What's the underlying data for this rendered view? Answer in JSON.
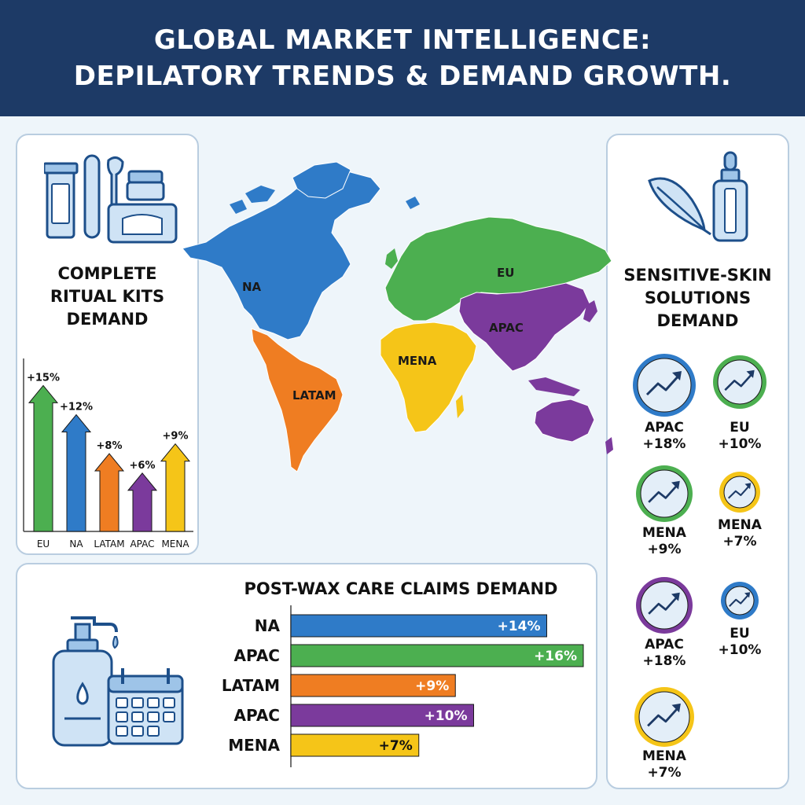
{
  "header": {
    "line1": "GLOBAL MARKET INTELLIGENCE:",
    "line2": "DEPILATORY TRENDS & DEMAND GROWTH."
  },
  "colors": {
    "header_bg": "#1d3a66",
    "blue": "#2f7bc8",
    "green": "#4caf50",
    "orange": "#ef7d22",
    "purple": "#7b3a9c",
    "yellow": "#f5c518"
  },
  "map": {
    "regions": [
      {
        "name": "NA",
        "color": "#2f7bc8"
      },
      {
        "name": "LATAM",
        "color": "#ef7d22"
      },
      {
        "name": "EU",
        "color": "#4caf50"
      },
      {
        "name": "MENA",
        "color": "#f5c518"
      },
      {
        "name": "APAC",
        "color": "#7b3a9c"
      }
    ]
  },
  "chart_data": [
    {
      "type": "bar",
      "title": "COMPLETE RITUAL KITS DEMAND",
      "title_lines": [
        "COMPLETE",
        "RITUAL KITS",
        "DEMAND"
      ],
      "icons": [
        "tube-icon",
        "spatula-icon",
        "jar-icon",
        "wipes-pack-icon"
      ],
      "categories": [
        "EU",
        "NA",
        "LATAM",
        "APAC",
        "MENA"
      ],
      "values": [
        15,
        12,
        8,
        6,
        9
      ],
      "value_labels": [
        "+15%",
        "+12%",
        "+8%",
        "+6%",
        "+9%"
      ],
      "colors": [
        "#4caf50",
        "#2f7bc8",
        "#ef7d22",
        "#7b3a9c",
        "#f5c518"
      ],
      "ylim": [
        0,
        16
      ]
    },
    {
      "type": "bar",
      "orientation": "horizontal",
      "title": "POST-WAX CARE CLAIMS DEMAND",
      "icons": [
        "pump-bottle-icon",
        "calendar-icon"
      ],
      "categories": [
        "NA",
        "APAC",
        "LATAM",
        "APAC",
        "MENA"
      ],
      "values": [
        14,
        16,
        9,
        10,
        7
      ],
      "value_labels": [
        "+14%",
        "+16%",
        "+9%",
        "+10%",
        "+7%"
      ],
      "colors": [
        "#2f7bc8",
        "#4caf50",
        "#ef7d22",
        "#7b3a9c",
        "#f5c518"
      ],
      "xlim": [
        0,
        16
      ]
    },
    {
      "type": "bubble",
      "title": "SENSITIVE-SKIN SOLUTIONS DEMAND",
      "title_lines": [
        "SENSITIVE-SKIN",
        "SOLUTIONS",
        "DEMAND"
      ],
      "icons": [
        "feather-icon",
        "dropper-bottle-icon"
      ],
      "items": [
        {
          "region": "APAC",
          "value": 18,
          "label": "+18%",
          "color": "#2f7bc8"
        },
        {
          "region": "EU",
          "value": 10,
          "label": "+10%",
          "color": "#4caf50"
        },
        {
          "region": "MENA",
          "value": 9,
          "label": "+9%",
          "color": "#4caf50"
        },
        {
          "region": "MENA",
          "value": 7,
          "label": "+7%",
          "color": "#f5c518"
        },
        {
          "region": "APAC",
          "value": 18,
          "label": "+18%",
          "color": "#7b3a9c"
        },
        {
          "region": "EU",
          "value": 10,
          "label": "+10%",
          "color": "#2f7bc8"
        },
        {
          "region": "MENA",
          "value": 7,
          "label": "+7%",
          "color": "#f5c518"
        }
      ]
    }
  ]
}
